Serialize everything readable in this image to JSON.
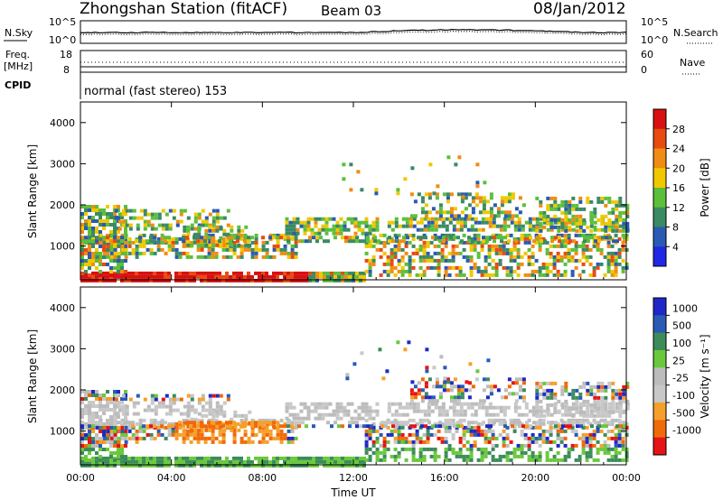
{
  "header": {
    "station": "Zhongshan Station (fitACF)",
    "beam": "Beam 03",
    "date": "08/Jan/2012"
  },
  "panels": {
    "noise": {
      "left_label": "N.Sky",
      "left_ticks": [
        "10^5",
        "10^0"
      ],
      "right_ticks": [
        "10^5",
        "10^0"
      ],
      "right_label": "N.Search"
    },
    "freq": {
      "left_label_top": "Freq.",
      "left_label_unit": "[MHz]",
      "left_ticks": [
        "18",
        "8"
      ],
      "right_ticks": [
        "60",
        "0"
      ],
      "right_label": "Nave"
    },
    "cpid": {
      "label": "CPID",
      "text": "normal (fast stereo) 153"
    }
  },
  "colors": {
    "power_scale": [
      "#1e28e6",
      "#2a5ab4",
      "#3a8a64",
      "#5cbf3a",
      "#f0c800",
      "#f08c14",
      "#e84a10",
      "#d81010"
    ],
    "velocity_scale": [
      "#e61414",
      "#f06a0a",
      "#f5a02a",
      "#c8c8c8",
      "#bcbcbc",
      "#6ac83c",
      "#3c8c5a",
      "#2a5ab4",
      "#1e28c8"
    ]
  },
  "chart_data": [
    {
      "type": "heatmap",
      "title": "",
      "xlabel": "",
      "ylabel": "Slant Range [km]",
      "x_ticks": [
        "00:00",
        "04:00",
        "08:00",
        "12:00",
        "16:00",
        "20:00",
        "00:00"
      ],
      "y_ticks": [
        1000,
        2000,
        3000,
        4000
      ],
      "xlim_hours": [
        0,
        24
      ],
      "ylim": [
        180,
        4500
      ],
      "colorbar": {
        "label": "Power [dB]",
        "ticks": [
          4,
          8,
          12,
          16,
          20,
          24,
          28
        ],
        "range": [
          0,
          32
        ]
      }
    },
    {
      "type": "heatmap",
      "title": "",
      "xlabel": "Time UT",
      "ylabel": "Slant Range [km]",
      "x_ticks": [
        "00:00",
        "04:00",
        "08:00",
        "12:00",
        "16:00",
        "20:00",
        "00:00"
      ],
      "y_ticks": [
        1000,
        2000,
        3000,
        4000
      ],
      "xlim_hours": [
        0,
        24
      ],
      "ylim": [
        180,
        4500
      ],
      "colorbar": {
        "label": "Velocity [m s⁻¹]",
        "ticks": [
          1000,
          500,
          100,
          25,
          -25,
          -100,
          -500,
          -1000
        ]
      }
    }
  ]
}
